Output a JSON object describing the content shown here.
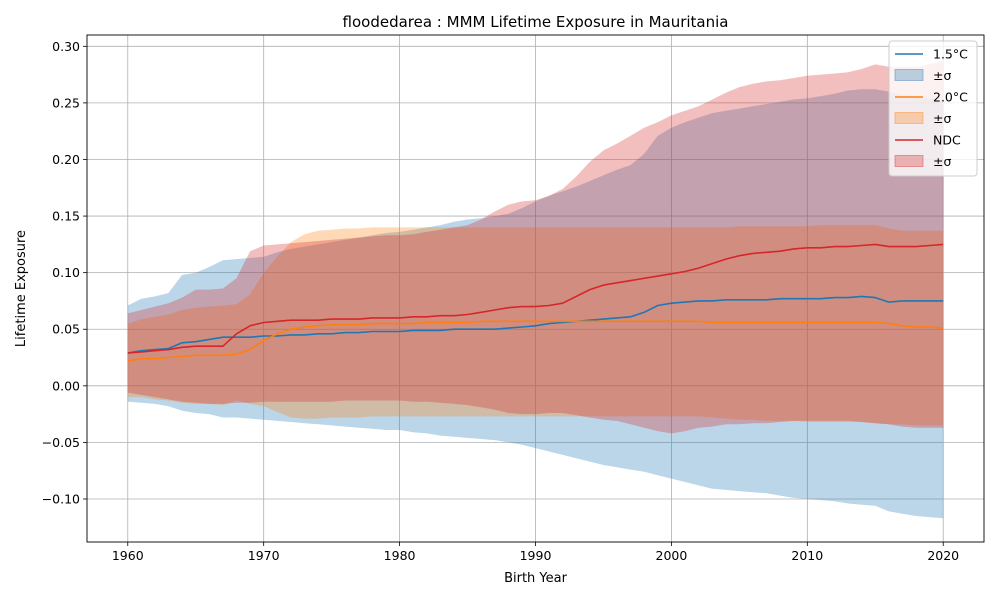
{
  "chart_data": {
    "type": "line",
    "title": "floodedarea : MMM Lifetime Exposure in Mauritania",
    "xlabel": "Birth Year",
    "ylabel": "Lifetime Exposure",
    "xlim": [
      1957,
      2023
    ],
    "ylim": [
      -0.138,
      0.31
    ],
    "xticks": [
      1960,
      1970,
      1980,
      1990,
      2000,
      2010,
      2020
    ],
    "xtick_labels": [
      "1960",
      "1970",
      "1980",
      "1990",
      "2000",
      "2010",
      "2020"
    ],
    "yticks": [
      -0.1,
      -0.05,
      0.0,
      0.05,
      0.1,
      0.15,
      0.2,
      0.25,
      0.3
    ],
    "ytick_labels": [
      "−0.10",
      "−0.05",
      "0.00",
      "0.05",
      "0.10",
      "0.15",
      "0.20",
      "0.25",
      "0.30"
    ],
    "grid": true,
    "legend_position": "top-right",
    "x": [
      1960,
      1961,
      1962,
      1963,
      1964,
      1965,
      1966,
      1967,
      1968,
      1969,
      1970,
      1971,
      1972,
      1973,
      1974,
      1975,
      1976,
      1977,
      1978,
      1979,
      1980,
      1981,
      1982,
      1983,
      1984,
      1985,
      1986,
      1987,
      1988,
      1989,
      1990,
      1991,
      1992,
      1993,
      1994,
      1995,
      1996,
      1997,
      1998,
      1999,
      2000,
      2001,
      2002,
      2003,
      2004,
      2005,
      2006,
      2007,
      2008,
      2009,
      2010,
      2011,
      2012,
      2013,
      2014,
      2015,
      2016,
      2017,
      2018,
      2019,
      2020
    ],
    "series": [
      {
        "name": "1.5°C",
        "band_label": "±σ",
        "color": "#1f77b4",
        "band_color": "#1f77b4",
        "values": [
          0.029,
          0.031,
          0.032,
          0.033,
          0.038,
          0.039,
          0.041,
          0.043,
          0.043,
          0.043,
          0.044,
          0.044,
          0.045,
          0.045,
          0.046,
          0.046,
          0.047,
          0.047,
          0.048,
          0.048,
          0.048,
          0.049,
          0.049,
          0.049,
          0.05,
          0.05,
          0.05,
          0.05,
          0.051,
          0.052,
          0.053,
          0.055,
          0.056,
          0.057,
          0.058,
          0.059,
          0.06,
          0.061,
          0.065,
          0.071,
          0.073,
          0.074,
          0.075,
          0.075,
          0.076,
          0.076,
          0.076,
          0.076,
          0.077,
          0.077,
          0.077,
          0.077,
          0.078,
          0.078,
          0.079,
          0.078,
          0.074,
          0.075,
          0.075,
          0.075,
          0.075
        ],
        "upper": [
          0.071,
          0.077,
          0.079,
          0.082,
          0.098,
          0.1,
          0.105,
          0.111,
          0.112,
          0.113,
          0.114,
          0.118,
          0.121,
          0.123,
          0.125,
          0.127,
          0.129,
          0.131,
          0.133,
          0.135,
          0.136,
          0.138,
          0.14,
          0.142,
          0.145,
          0.147,
          0.148,
          0.15,
          0.152,
          0.157,
          0.163,
          0.168,
          0.172,
          0.176,
          0.181,
          0.186,
          0.191,
          0.195,
          0.205,
          0.221,
          0.228,
          0.233,
          0.237,
          0.241,
          0.243,
          0.245,
          0.247,
          0.249,
          0.251,
          0.253,
          0.254,
          0.256,
          0.258,
          0.261,
          0.262,
          0.262,
          0.26,
          0.257,
          0.256,
          0.254,
          0.252
        ],
        "lower": [
          -0.014,
          -0.015,
          -0.016,
          -0.018,
          -0.022,
          -0.024,
          -0.025,
          -0.028,
          -0.028,
          -0.029,
          -0.03,
          -0.031,
          -0.032,
          -0.033,
          -0.034,
          -0.035,
          -0.036,
          -0.037,
          -0.038,
          -0.039,
          -0.039,
          -0.041,
          -0.042,
          -0.044,
          -0.045,
          -0.046,
          -0.047,
          -0.048,
          -0.05,
          -0.052,
          -0.055,
          -0.058,
          -0.061,
          -0.064,
          -0.067,
          -0.07,
          -0.072,
          -0.074,
          -0.076,
          -0.079,
          -0.082,
          -0.085,
          -0.088,
          -0.091,
          -0.092,
          -0.093,
          -0.094,
          -0.095,
          -0.097,
          -0.099,
          -0.1,
          -0.101,
          -0.102,
          -0.104,
          -0.105,
          -0.106,
          -0.111,
          -0.113,
          -0.115,
          -0.116,
          -0.117
        ]
      },
      {
        "name": "2.0°C",
        "band_label": "±σ",
        "color": "#ff7f0e",
        "band_color": "#ff7f0e",
        "values": [
          0.022,
          0.024,
          0.024,
          0.025,
          0.026,
          0.027,
          0.027,
          0.027,
          0.028,
          0.032,
          0.04,
          0.046,
          0.05,
          0.052,
          0.053,
          0.054,
          0.054,
          0.054,
          0.055,
          0.055,
          0.055,
          0.055,
          0.056,
          0.056,
          0.056,
          0.056,
          0.057,
          0.057,
          0.057,
          0.057,
          0.057,
          0.057,
          0.057,
          0.057,
          0.057,
          0.057,
          0.057,
          0.057,
          0.057,
          0.057,
          0.057,
          0.057,
          0.057,
          0.056,
          0.056,
          0.056,
          0.056,
          0.056,
          0.056,
          0.056,
          0.056,
          0.056,
          0.056,
          0.056,
          0.056,
          0.056,
          0.055,
          0.053,
          0.052,
          0.052,
          0.051
        ],
        "upper": [
          0.055,
          0.059,
          0.061,
          0.063,
          0.067,
          0.069,
          0.07,
          0.071,
          0.072,
          0.081,
          0.1,
          0.114,
          0.127,
          0.134,
          0.137,
          0.138,
          0.139,
          0.139,
          0.14,
          0.14,
          0.14,
          0.14,
          0.14,
          0.14,
          0.14,
          0.14,
          0.14,
          0.14,
          0.14,
          0.14,
          0.14,
          0.14,
          0.14,
          0.14,
          0.14,
          0.14,
          0.14,
          0.14,
          0.14,
          0.14,
          0.14,
          0.14,
          0.14,
          0.14,
          0.14,
          0.141,
          0.141,
          0.141,
          0.141,
          0.141,
          0.141,
          0.142,
          0.142,
          0.142,
          0.142,
          0.142,
          0.139,
          0.137,
          0.137,
          0.137,
          0.137
        ],
        "lower": [
          -0.01,
          -0.01,
          -0.012,
          -0.013,
          -0.015,
          -0.016,
          -0.016,
          -0.017,
          -0.013,
          -0.016,
          -0.018,
          -0.023,
          -0.028,
          -0.029,
          -0.029,
          -0.028,
          -0.028,
          -0.028,
          -0.027,
          -0.027,
          -0.027,
          -0.027,
          -0.027,
          -0.027,
          -0.027,
          -0.027,
          -0.027,
          -0.027,
          -0.027,
          -0.027,
          -0.027,
          -0.027,
          -0.027,
          -0.027,
          -0.027,
          -0.027,
          -0.027,
          -0.027,
          -0.027,
          -0.027,
          -0.027,
          -0.027,
          -0.027,
          -0.028,
          -0.029,
          -0.03,
          -0.03,
          -0.031,
          -0.031,
          -0.031,
          -0.032,
          -0.032,
          -0.032,
          -0.032,
          -0.032,
          -0.033,
          -0.034,
          -0.034,
          -0.035,
          -0.035,
          -0.035
        ]
      },
      {
        "name": "NDC",
        "band_label": "±σ",
        "color": "#d62728",
        "band_color": "#d62728",
        "values": [
          0.029,
          0.03,
          0.031,
          0.032,
          0.034,
          0.035,
          0.035,
          0.035,
          0.046,
          0.053,
          0.056,
          0.057,
          0.058,
          0.058,
          0.058,
          0.059,
          0.059,
          0.059,
          0.06,
          0.06,
          0.06,
          0.061,
          0.061,
          0.062,
          0.062,
          0.063,
          0.065,
          0.067,
          0.069,
          0.07,
          0.07,
          0.071,
          0.073,
          0.079,
          0.085,
          0.089,
          0.091,
          0.093,
          0.095,
          0.097,
          0.099,
          0.101,
          0.104,
          0.108,
          0.112,
          0.115,
          0.117,
          0.118,
          0.119,
          0.121,
          0.122,
          0.122,
          0.123,
          0.123,
          0.124,
          0.125,
          0.123,
          0.123,
          0.123,
          0.124,
          0.125
        ],
        "upper": [
          0.064,
          0.067,
          0.07,
          0.073,
          0.078,
          0.085,
          0.085,
          0.086,
          0.095,
          0.119,
          0.124,
          0.125,
          0.126,
          0.127,
          0.128,
          0.129,
          0.13,
          0.131,
          0.132,
          0.133,
          0.133,
          0.134,
          0.136,
          0.138,
          0.14,
          0.142,
          0.147,
          0.154,
          0.16,
          0.163,
          0.164,
          0.168,
          0.174,
          0.185,
          0.198,
          0.208,
          0.214,
          0.221,
          0.228,
          0.233,
          0.239,
          0.243,
          0.247,
          0.253,
          0.259,
          0.264,
          0.267,
          0.269,
          0.27,
          0.272,
          0.274,
          0.275,
          0.276,
          0.277,
          0.28,
          0.284,
          0.282,
          0.282,
          0.282,
          0.284,
          0.288
        ],
        "lower": [
          -0.006,
          -0.008,
          -0.01,
          -0.012,
          -0.014,
          -0.015,
          -0.016,
          -0.016,
          -0.015,
          -0.015,
          -0.014,
          -0.014,
          -0.014,
          -0.014,
          -0.014,
          -0.014,
          -0.013,
          -0.013,
          -0.013,
          -0.013,
          -0.013,
          -0.014,
          -0.014,
          -0.015,
          -0.016,
          -0.017,
          -0.019,
          -0.021,
          -0.024,
          -0.025,
          -0.025,
          -0.024,
          -0.024,
          -0.026,
          -0.028,
          -0.03,
          -0.031,
          -0.034,
          -0.037,
          -0.04,
          -0.042,
          -0.04,
          -0.037,
          -0.036,
          -0.034,
          -0.034,
          -0.033,
          -0.033,
          -0.032,
          -0.031,
          -0.031,
          -0.031,
          -0.031,
          -0.031,
          -0.032,
          -0.033,
          -0.034,
          -0.036,
          -0.037,
          -0.037,
          -0.037
        ]
      }
    ]
  }
}
